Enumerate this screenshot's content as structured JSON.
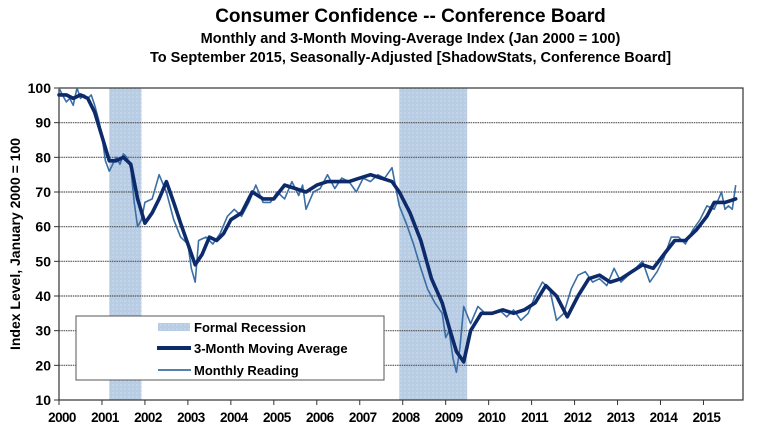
{
  "chart_data": {
    "type": "line",
    "title": "Consumer Confidence -- Conference Board",
    "subtitle_1": "Monthly and 3-Month Moving-Average Index (Jan 2000 = 100)",
    "subtitle_2": "To September 2015, Seasonally-Adjusted [ShadowStats, Conference Board]",
    "xlabel": "",
    "ylabel": "Index Level, January 2000 = 100",
    "ylim": [
      10,
      100
    ],
    "xlim": [
      2000.0,
      2015.92
    ],
    "y_ticks": [
      "10",
      "20",
      "30",
      "40",
      "50",
      "60",
      "70",
      "80",
      "90",
      "100"
    ],
    "x_ticks": [
      "2000",
      "2001",
      "2002",
      "2003",
      "2004",
      "2005",
      "2006",
      "2007",
      "2008",
      "2009",
      "2010",
      "2011",
      "2012",
      "2013",
      "2014",
      "2015"
    ],
    "grid": true,
    "legend_position": "bottom-left",
    "legend": [
      {
        "label": "Formal Recession",
        "kind": "recession"
      },
      {
        "label": "3-Month Moving Average",
        "kind": "ma"
      },
      {
        "label": "Monthly Reading",
        "kind": "monthly"
      }
    ],
    "colors": {
      "recession": "#b8cce4",
      "moving_average": "#0d2a6b",
      "monthly": "#3a6ea5",
      "grid": "#555555",
      "axis": "#333333"
    },
    "recessions": [
      {
        "start": 2001.17,
        "end": 2001.92
      },
      {
        "start": 2007.92,
        "end": 2009.5
      }
    ],
    "series": [
      {
        "name": "Monthly Reading",
        "x": [
          2000.0,
          2000.08,
          2000.17,
          2000.25,
          2000.33,
          2000.42,
          2000.5,
          2000.58,
          2000.67,
          2000.75,
          2000.83,
          2000.92,
          2001.0,
          2001.08,
          2001.17,
          2001.25,
          2001.33,
          2001.42,
          2001.5,
          2001.58,
          2001.67,
          2001.75,
          2001.83,
          2001.92,
          2002.0,
          2002.17,
          2002.33,
          2002.5,
          2002.67,
          2002.83,
          2003.0,
          2003.08,
          2003.17,
          2003.25,
          2003.42,
          2003.58,
          2003.75,
          2003.92,
          2004.08,
          2004.25,
          2004.42,
          2004.58,
          2004.75,
          2004.92,
          2005.08,
          2005.25,
          2005.42,
          2005.58,
          2005.67,
          2005.75,
          2005.92,
          2006.08,
          2006.25,
          2006.42,
          2006.58,
          2006.75,
          2006.92,
          2007.08,
          2007.25,
          2007.42,
          2007.58,
          2007.75,
          2007.92,
          2008.08,
          2008.25,
          2008.42,
          2008.58,
          2008.75,
          2008.92,
          2009.0,
          2009.08,
          2009.17,
          2009.25,
          2009.33,
          2009.42,
          2009.58,
          2009.75,
          2009.92,
          2010.08,
          2010.25,
          2010.42,
          2010.58,
          2010.75,
          2010.92,
          2011.08,
          2011.25,
          2011.42,
          2011.58,
          2011.75,
          2011.92,
          2012.08,
          2012.25,
          2012.42,
          2012.58,
          2012.75,
          2012.92,
          2013.08,
          2013.25,
          2013.42,
          2013.58,
          2013.75,
          2013.92,
          2014.08,
          2014.25,
          2014.42,
          2014.58,
          2014.75,
          2014.92,
          2015.08,
          2015.25,
          2015.42,
          2015.5,
          2015.58,
          2015.67
        ],
        "values": [
          100,
          98,
          96,
          97,
          95,
          100,
          97,
          98,
          97,
          98,
          95,
          91,
          86,
          79,
          76,
          78,
          80,
          78,
          81,
          80,
          77,
          67,
          60,
          62,
          67,
          68,
          75,
          70,
          62,
          57,
          55,
          48,
          44,
          56,
          57,
          55,
          58,
          63,
          65,
          63,
          67,
          72,
          67,
          67,
          70,
          68,
          73,
          69,
          72,
          65,
          70,
          71,
          75,
          71,
          74,
          73,
          70,
          74,
          73,
          75,
          74,
          77,
          66,
          61,
          55,
          48,
          42,
          38,
          35,
          28,
          30,
          22,
          18,
          25,
          37,
          32,
          37,
          35,
          35,
          36,
          34,
          36,
          33,
          35,
          40,
          44,
          42,
          33,
          35,
          42,
          46,
          47,
          44,
          45,
          43,
          48,
          44,
          46,
          48,
          50,
          44,
          47,
          51,
          57,
          57,
          55,
          59,
          62,
          66,
          65,
          70,
          65,
          66,
          65
        ],
        "extra_tail": {
          "x": [
            2015.75
          ],
          "values": [
            72
          ]
        }
      },
      {
        "name": "3-Month Moving Average",
        "x": [
          2000.0,
          2000.17,
          2000.33,
          2000.5,
          2000.67,
          2000.83,
          2001.0,
          2001.17,
          2001.33,
          2001.5,
          2001.67,
          2001.83,
          2002.0,
          2002.17,
          2002.33,
          2002.5,
          2002.67,
          2002.83,
          2003.0,
          2003.17,
          2003.33,
          2003.5,
          2003.67,
          2003.83,
          2004.0,
          2004.25,
          2004.5,
          2004.75,
          2005.0,
          2005.25,
          2005.5,
          2005.75,
          2006.0,
          2006.25,
          2006.5,
          2006.75,
          2007.0,
          2007.25,
          2007.5,
          2007.75,
          2007.92,
          2008.17,
          2008.42,
          2008.67,
          2008.92,
          2009.08,
          2009.25,
          2009.42,
          2009.58,
          2009.83,
          2010.08,
          2010.33,
          2010.58,
          2010.83,
          2011.08,
          2011.33,
          2011.58,
          2011.83,
          2012.08,
          2012.33,
          2012.58,
          2012.83,
          2013.08,
          2013.33,
          2013.58,
          2013.83,
          2014.08,
          2014.33,
          2014.58,
          2014.83,
          2015.08,
          2015.25,
          2015.5,
          2015.75
        ],
        "values": [
          98,
          98,
          97,
          98,
          97,
          93,
          86,
          79,
          79,
          80,
          78,
          68,
          61,
          64,
          68,
          73,
          67,
          61,
          55,
          49,
          52,
          57,
          56,
          58,
          62,
          64,
          70,
          68,
          68,
          72,
          71,
          70,
          72,
          73,
          73,
          73,
          74,
          75,
          74,
          73,
          70,
          64,
          56,
          45,
          38,
          31,
          24,
          21,
          30,
          35,
          35,
          36,
          35,
          36,
          38,
          43,
          40,
          34,
          40,
          45,
          46,
          44,
          45,
          47,
          49,
          48,
          52,
          56,
          56,
          59,
          63,
          67,
          67,
          68
        ]
      }
    ]
  }
}
